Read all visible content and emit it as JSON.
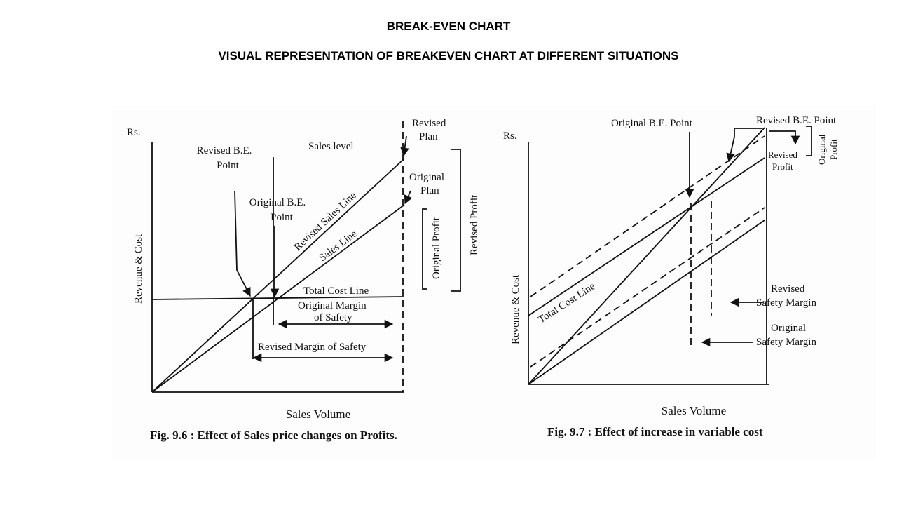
{
  "slide": {
    "title": "BREAK-EVEN CHART",
    "subtitle": "VISUAL REPRESENTATION OF BREAKEVEN CHART AT DIFFERENT SITUATIONS"
  },
  "fig6": {
    "y_axis_unit": "Rs.",
    "y_axis_label": "Revenue & Cost",
    "x_axis_label": "Sales Volume",
    "caption": "Fig. 9.6 : Effect of Sales price changes on Profits.",
    "revised_be_point": [
      "Revised B.E.",
      "Point"
    ],
    "sales_level": "Sales level",
    "original_be_point": [
      "Original B.E.",
      "Point"
    ],
    "revised_plan": [
      "Revised",
      "Plan"
    ],
    "original_plan": [
      "Original",
      "Plan"
    ],
    "revised_sales_line": "Revised Sales Line",
    "sales_line": "Sales Line",
    "original_profit": "Original Profit",
    "revised_profit": "Revised Profit",
    "total_cost_line": "Total Cost Line",
    "original_margin_of_safety": [
      "Original Margin",
      "of Safety"
    ],
    "revised_margin_of_safety": "Revised Margin of Safety"
  },
  "fig7": {
    "y_axis_unit": "Rs.",
    "y_axis_label": "Revenue & Cost",
    "x_axis_label": "Sales Volume",
    "caption": "Fig. 9.7 : Effect of increase in variable cost",
    "original_be_point": "Original B.E. Point",
    "revised_be_point": "Revised B.E. Point",
    "revised_profit": [
      "Revised",
      "Profit"
    ],
    "original_profit": [
      "Original",
      "Profit"
    ],
    "total_cost_line": "Total Cost Line",
    "revised_safety_margin": [
      "Revised",
      "Safety Margin"
    ],
    "original_safety_margin": [
      "Original",
      "Safety Margin"
    ]
  }
}
